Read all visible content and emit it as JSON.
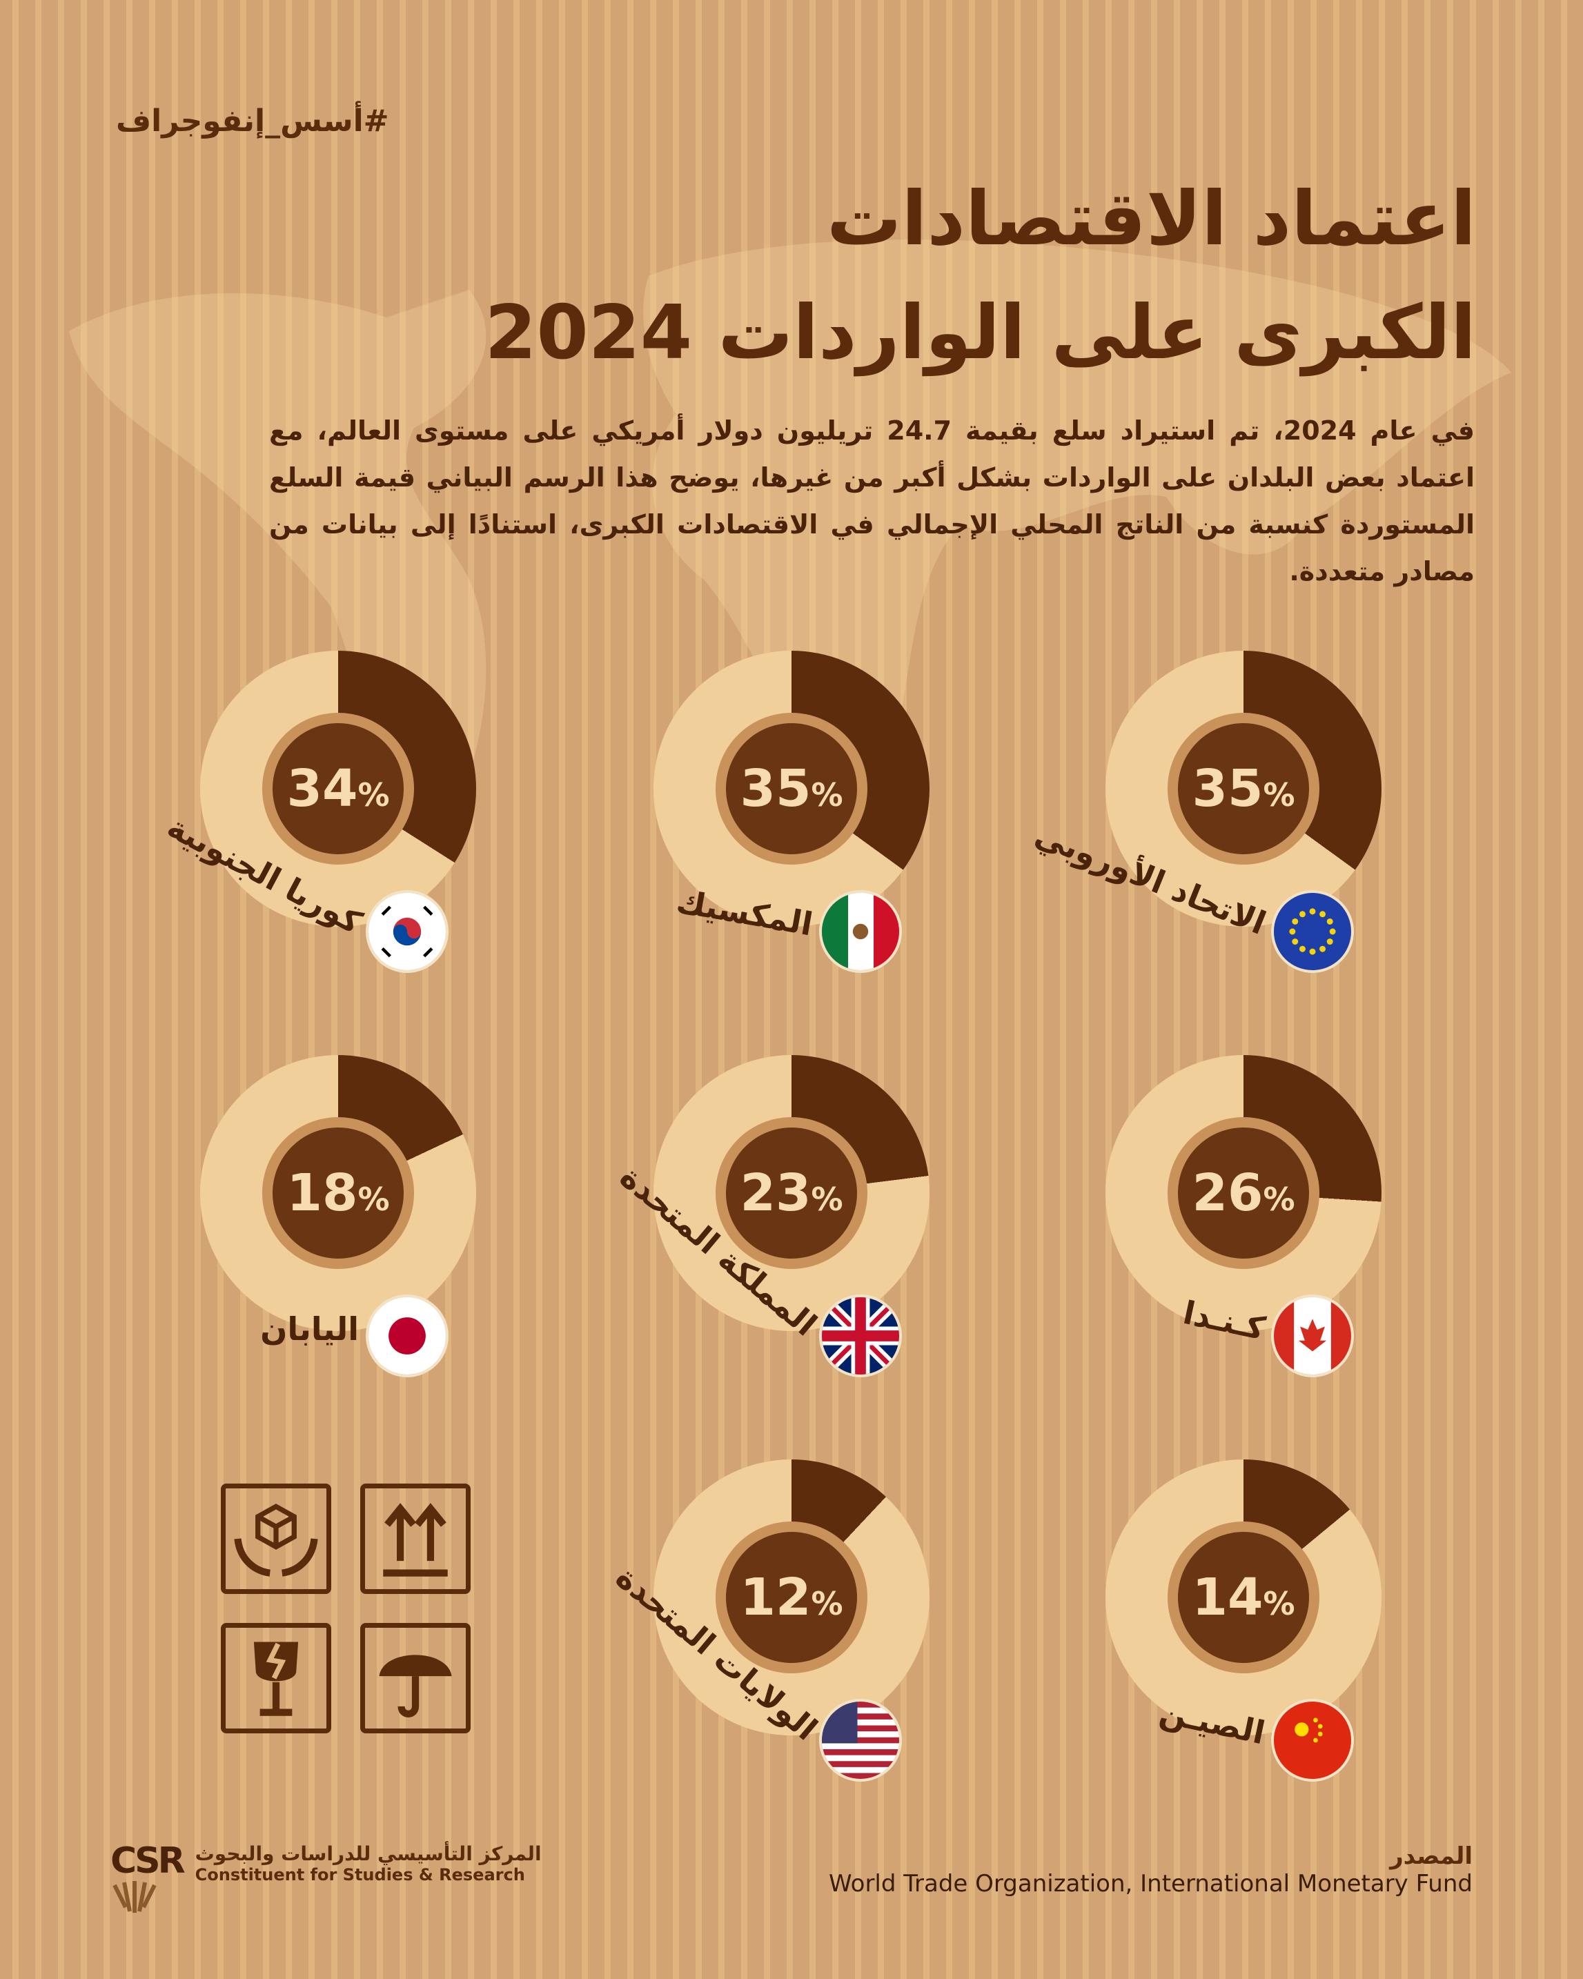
{
  "hashtag": "#أسس_إنفوجراف",
  "title": {
    "line1": "اعتماد الاقتصادات",
    "line2": "الكبرى على الواردات 2024"
  },
  "description": "في عام 2024، تم استيراد سلع بقيمة 24.7 تريليون دولار أمريكي على مستوى العالم، مع اعتماد بعض البلدان على الواردات بشكل أكبر من غيرها، يوضح هذا الرسم البياني قيمة السلع المستوردة كنسبة من الناتج المحلي الإجمالي في الاقتصادات الكبرى، استنادًا إلى بيانات من مصادر متعددة.",
  "colors": {
    "segment": "#5c2c0c",
    "ring": "#f0cf9b",
    "core": "#6a3513"
  },
  "chart_data": {
    "type": "pie",
    "variant": "donut-per-country",
    "unit": "% of GDP",
    "categories": [
      "الاتحاد الأوروبي",
      "المكسيك",
      "كوريا الجنوبية",
      "كـنـدا",
      "المملكة المتحدة",
      "اليابان",
      "الصيـن",
      "الولايات المتحدة"
    ],
    "values": [
      35,
      35,
      34,
      26,
      23,
      18,
      14,
      12
    ],
    "value_labels": [
      "35%",
      "35%",
      "34%",
      "26%",
      "23%",
      "18%",
      "14%",
      "12%"
    ],
    "flags": [
      "eu",
      "mexico",
      "south-korea",
      "canada",
      "uk",
      "japan",
      "china",
      "usa"
    ]
  },
  "icons": [
    "handle-with-care-icon",
    "this-side-up-icon",
    "fragile-icon",
    "keep-dry-icon"
  ],
  "footer": {
    "logo_mark": "CSR",
    "org_ar": "المركز التأسيسي للدراسات والبحوث",
    "org_en": "Constituent for Studies & Research",
    "source_label": "المصدر",
    "source": "World Trade Organization, International Monetary Fund"
  }
}
